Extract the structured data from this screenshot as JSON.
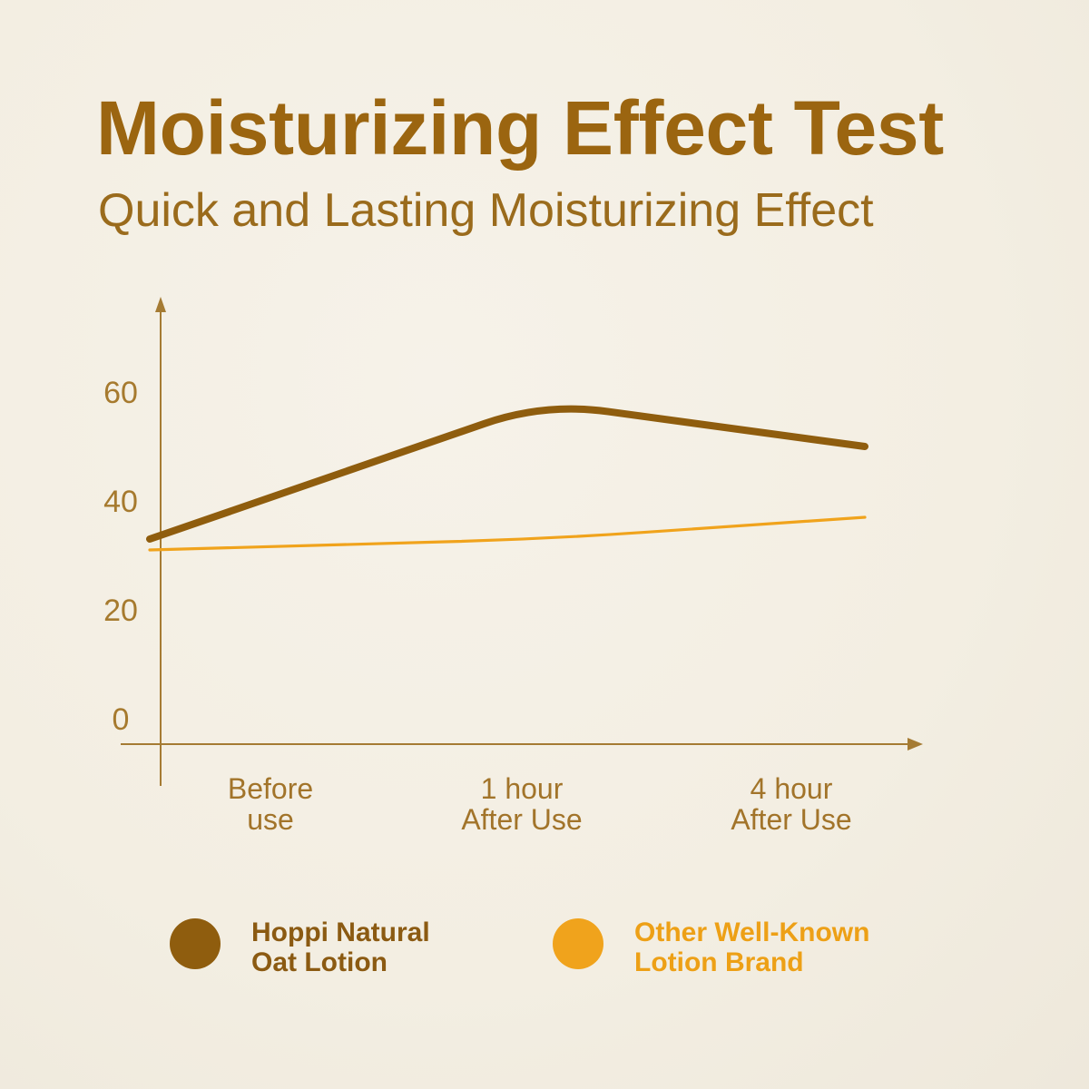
{
  "chart_data": {
    "type": "line",
    "title": "Moisturizing Effect Test",
    "subtitle": "Quick and Lasting Moisturizing Effect",
    "categories": [
      "Before\nuse",
      "1 hour\nAfter Use",
      "4 hour\nAfter Use"
    ],
    "yticks": [
      0,
      20,
      40,
      60
    ],
    "ylim": [
      0,
      75
    ],
    "grid": false,
    "legend": "bottom",
    "series": [
      {
        "name": "Hoppi Natural\nOat Lotion",
        "values": [
          33,
          58,
          50
        ],
        "color": "#8f5d0e",
        "text_color": "#8b5a12"
      },
      {
        "name": "Other Well-Known\nLotion Brand",
        "values": [
          31,
          33,
          37
        ],
        "color": "#f0a31c",
        "text_color": "#eda016"
      }
    ]
  }
}
